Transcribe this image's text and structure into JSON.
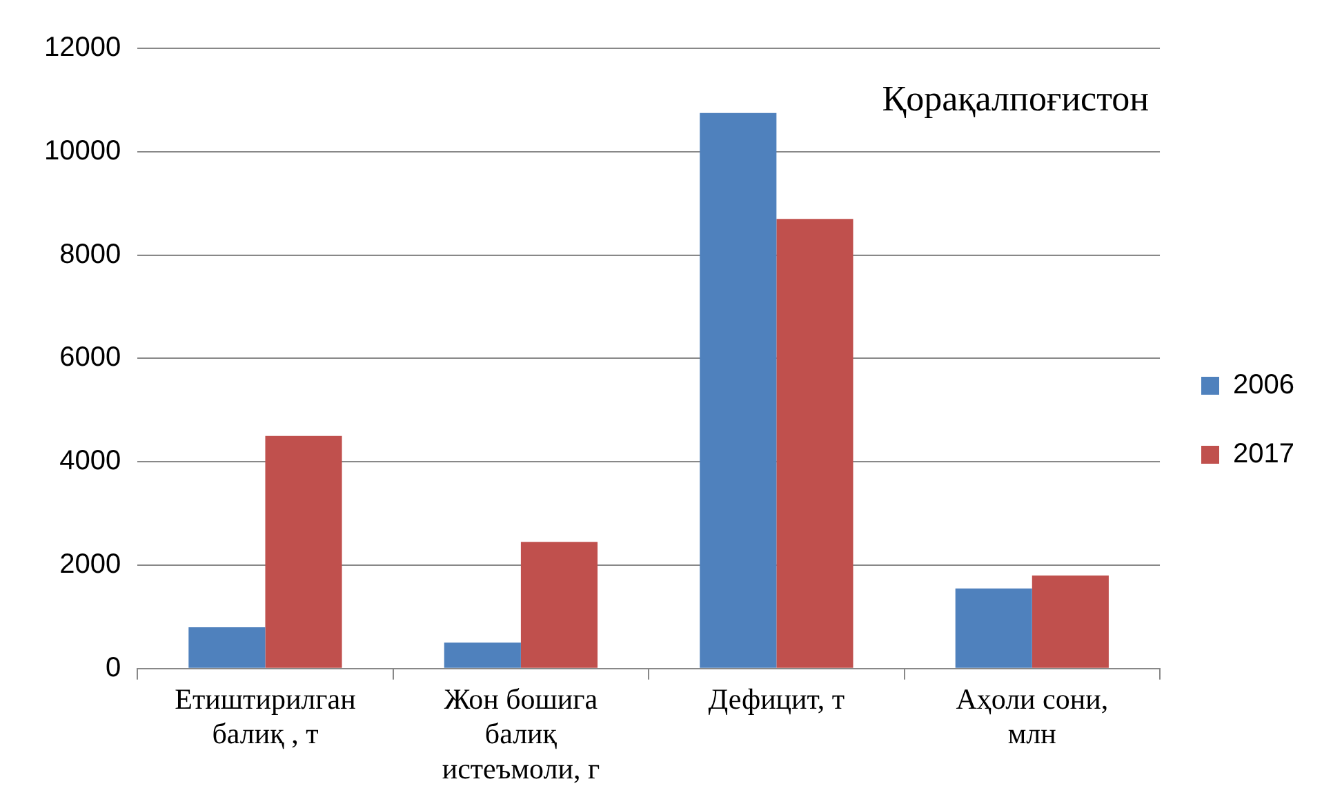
{
  "chart_data": {
    "type": "bar",
    "title": "Қорақалпоғистон",
    "categories": [
      "Етиштирилган балиқ , т",
      "Жон бошига балиқ истеъмоли, г",
      "Дефицит, т",
      "Аҳоли сони, млн"
    ],
    "series": [
      {
        "name": "2006",
        "color": "#4f81bd",
        "values": [
          800,
          500,
          10750,
          1550
        ]
      },
      {
        "name": "2017",
        "color": "#c0504d",
        "values": [
          4500,
          2450,
          8700,
          1800
        ]
      }
    ],
    "ylim": [
      0,
      12000
    ],
    "yticks": [
      0,
      2000,
      4000,
      6000,
      8000,
      10000,
      12000
    ],
    "grid": "y",
    "legend": "right"
  }
}
